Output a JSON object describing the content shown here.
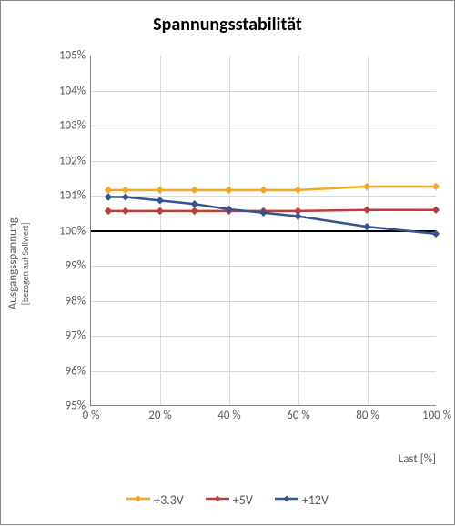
{
  "chart": {
    "type": "line",
    "title": "Spannungsstabilität",
    "title_fontsize": 20,
    "background_color": "#ffffff",
    "frame_border_color": "#888888",
    "grid_color": "#d9d9d9",
    "axis_color": "#888888",
    "tick_font_color": "#595959",
    "tick_fontsize": 13,
    "y_axis": {
      "label_main": "Ausgangsspannung",
      "label_sub": "[bezogen auf Sollwert]",
      "label_fontsize": 13,
      "min": 95,
      "max": 105,
      "tick_step": 1,
      "tick_suffix": "%"
    },
    "x_axis": {
      "label": "Last [%]",
      "label_fontsize": 13,
      "min": 0,
      "max": 100,
      "tick_step": 20,
      "tick_suffix": " %"
    },
    "baseline": {
      "y": 100,
      "color": "#000000",
      "width": 2
    },
    "x_values": [
      5,
      10,
      20,
      30,
      40,
      50,
      60,
      80,
      100
    ],
    "series": [
      {
        "name": "+3.3V",
        "color": "#f6a720",
        "line_width": 2.5,
        "marker": "diamond",
        "marker_size": 7,
        "y": [
          101.15,
          101.15,
          101.15,
          101.15,
          101.15,
          101.15,
          101.15,
          101.25,
          101.25
        ]
      },
      {
        "name": "+5V",
        "color": "#b83e3a",
        "line_width": 2.5,
        "marker": "diamond",
        "marker_size": 7,
        "y": [
          100.55,
          100.55,
          100.55,
          100.55,
          100.55,
          100.55,
          100.55,
          100.58,
          100.58
        ]
      },
      {
        "name": "+12V",
        "color": "#33548f",
        "line_width": 2.5,
        "marker": "diamond",
        "marker_size": 7,
        "y": [
          100.95,
          100.95,
          100.85,
          100.75,
          100.6,
          100.5,
          100.4,
          100.1,
          99.9
        ]
      }
    ],
    "legend": {
      "position": "bottom",
      "fontsize": 14
    }
  }
}
